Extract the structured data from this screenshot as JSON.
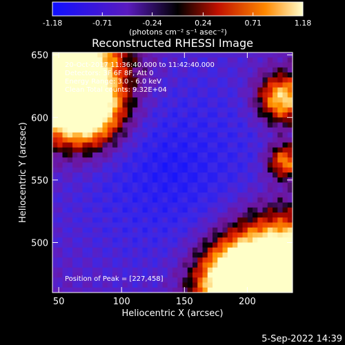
{
  "colorbar": {
    "ticks": [
      "-1.18",
      "-0.71",
      "-0.24",
      "0.24",
      "0.71",
      "1.18"
    ],
    "unit_label": "(photons cm⁻² s⁻¹ asec⁻²)",
    "range": [
      -1.18,
      1.18
    ],
    "colors": [
      "#1010ff",
      "#5a1bbf",
      "#000000",
      "#c01000",
      "#ff8800",
      "#ffffcc"
    ]
  },
  "chart_data": {
    "type": "heatmap",
    "title": "Reconstructed RHESSI Image",
    "xlabel": "Heliocentric X (arcsec)",
    "ylabel": "Heliocentric Y (arcsec)",
    "xlim": [
      45,
      236
    ],
    "ylim": [
      460,
      652
    ],
    "xticks": [
      50,
      100,
      150,
      200
    ],
    "yticks": [
      500,
      550,
      600,
      650
    ],
    "annotations": [
      "20-Oct-2017 11:36:40.000 to 11:42:40.000",
      "Detectors: 3F 6F 8F, Att 0",
      "Energy Range: 3.0 - 6.0 keV",
      "Clean       Total counts: 9.32E+04"
    ],
    "peak_text": "Position of Peak = [227,458]",
    "peak": [
      227,
      458
    ]
  },
  "footer": {
    "date": "5-Sep-2022 14:39"
  }
}
